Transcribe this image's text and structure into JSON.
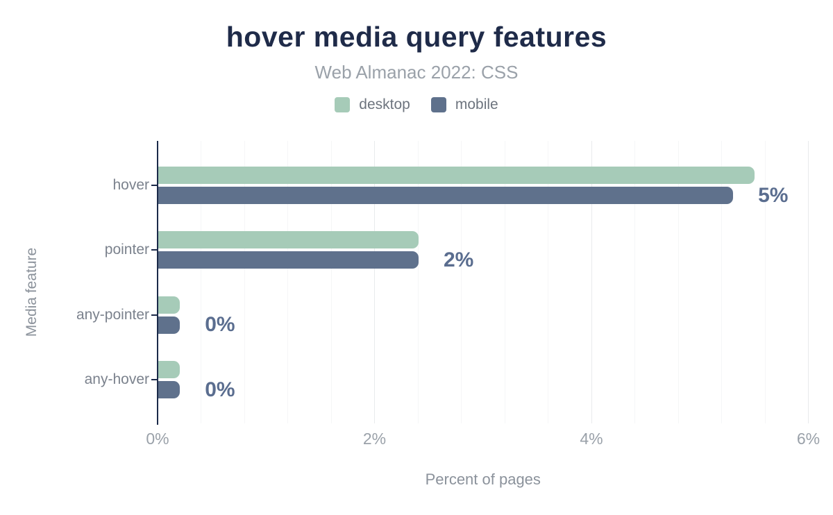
{
  "chart_data": {
    "type": "bar",
    "orientation": "horizontal",
    "title": "hover media query features",
    "subtitle": "Web Almanac 2022: CSS",
    "xlabel": "Percent of pages",
    "ylabel": "Media feature",
    "categories": [
      "hover",
      "pointer",
      "any-pointer",
      "any-hover"
    ],
    "series": [
      {
        "name": "desktop",
        "color": "#a6cbb8",
        "values": [
          5.5,
          2.4,
          0.2,
          0.2
        ]
      },
      {
        "name": "mobile",
        "color": "#5f718c",
        "values": [
          5.3,
          2.4,
          0.2,
          0.2
        ]
      }
    ],
    "value_labels": [
      "5%",
      "2%",
      "0%",
      "0%"
    ],
    "x_ticks": [
      {
        "value": 0,
        "label": "0%"
      },
      {
        "value": 2,
        "label": "2%"
      },
      {
        "value": 4,
        "label": "4%"
      },
      {
        "value": 6,
        "label": "6%"
      }
    ],
    "xlim": [
      0,
      6
    ],
    "minor_grid_step": 0.4,
    "major_grid_step": 2,
    "grid": true,
    "legend_position": "top",
    "colors": {
      "background": "#ffffff",
      "title": "#1f2b49",
      "subtitle": "#9aa1a9",
      "axis_line": "#1b2a49",
      "tick_label": "#9aa1a9",
      "category_label": "#7b828d",
      "value_label": "#5a6d8f",
      "legend_label": "#6d747e",
      "axis_title": "#8b929b",
      "minor_grid": "#f5f6f7",
      "major_grid": "#e8eaec"
    }
  }
}
